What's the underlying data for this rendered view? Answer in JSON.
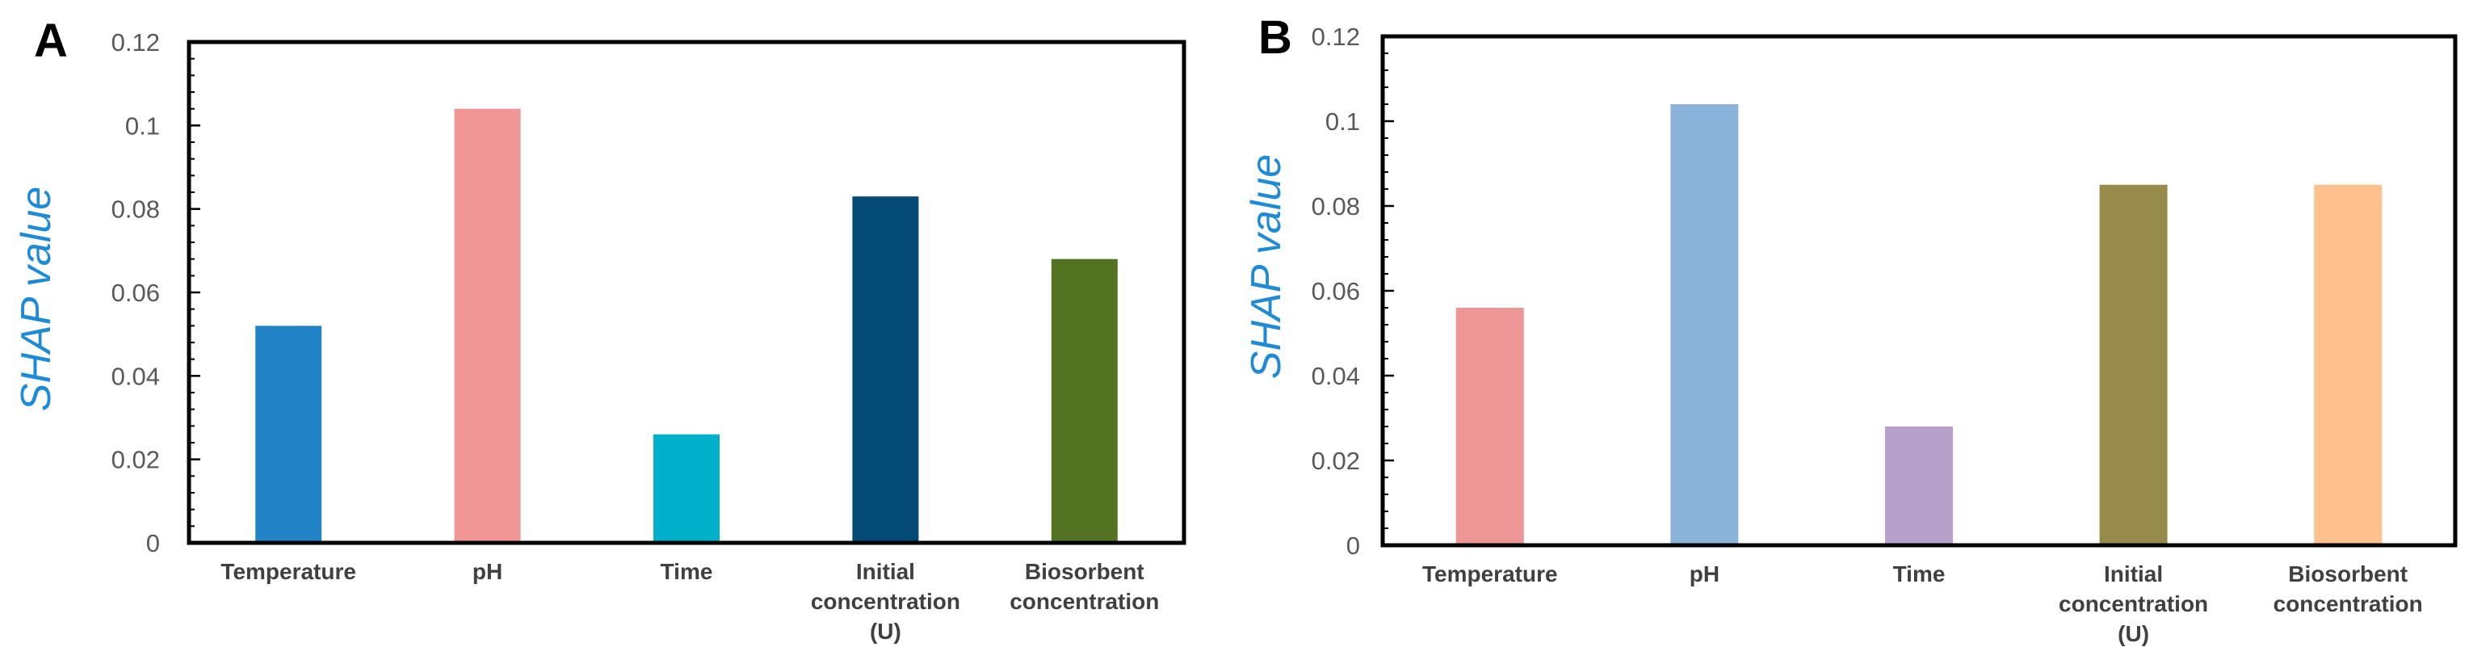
{
  "chart_data": [
    {
      "panel": "A",
      "type": "bar",
      "ylabel": "SHAP value",
      "ylim": [
        0,
        0.12
      ],
      "yticks": [
        "0",
        "0.02",
        "0.04",
        "0.06",
        "0.08",
        "0.1",
        "0.12"
      ],
      "categories": [
        [
          "Temperature"
        ],
        [
          "pH"
        ],
        [
          "Time"
        ],
        [
          "Initial",
          "concentration",
          "(U)"
        ],
        [
          "Biosorbent",
          "concentration"
        ]
      ],
      "values": [
        0.052,
        0.104,
        0.026,
        0.083,
        0.068
      ],
      "colors": [
        "#2283c4",
        "#ef9695",
        "#00afc9",
        "#034b76",
        "#537322"
      ]
    },
    {
      "panel": "B",
      "type": "bar",
      "ylabel": "SHAP value",
      "ylim": [
        0,
        0.12
      ],
      "yticks": [
        "0",
        "0.02",
        "0.04",
        "0.06",
        "0.08",
        "0.1",
        "0.12"
      ],
      "categories": [
        [
          "Temperature"
        ],
        [
          "pH"
        ],
        [
          "Time"
        ],
        [
          "Initial",
          "concentration",
          "(U)"
        ],
        [
          "Biosorbent",
          "concentration"
        ]
      ],
      "values": [
        0.056,
        0.104,
        0.028,
        0.085,
        0.085
      ],
      "colors": [
        "#ee9695",
        "#8bb4da",
        "#b7a1ca",
        "#978b4c",
        "#fec08f"
      ]
    }
  ]
}
